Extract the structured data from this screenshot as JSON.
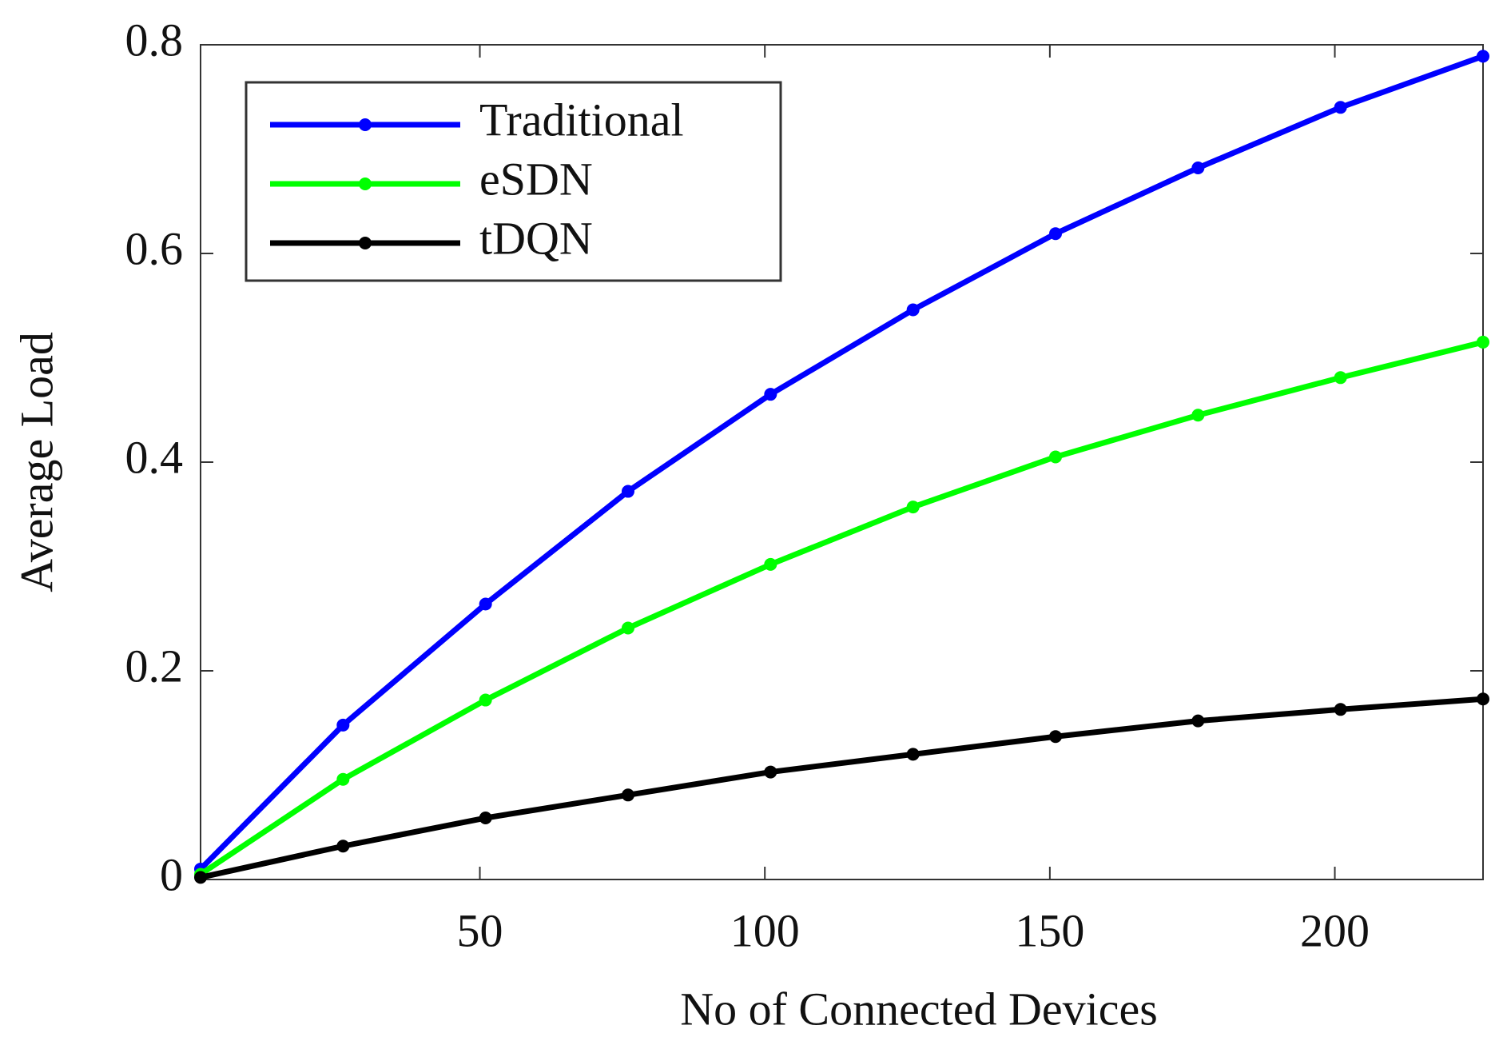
{
  "chart_data": {
    "type": "line",
    "x_label": "No of Connected Devices",
    "y_label": "Average Load",
    "x": [
      1,
      26,
      51,
      76,
      101,
      126,
      151,
      176,
      201,
      226
    ],
    "series": [
      {
        "name": "Traditional",
        "color": "#0000ff",
        "values": [
          0.01,
          0.148,
          0.264,
          0.372,
          0.465,
          0.546,
          0.619,
          0.682,
          0.74,
          0.789
        ]
      },
      {
        "name": "eSDN",
        "color": "#00ff00",
        "values": [
          0.005,
          0.096,
          0.172,
          0.241,
          0.302,
          0.357,
          0.405,
          0.445,
          0.481,
          0.515
        ]
      },
      {
        "name": "tDQN",
        "color": "#000000",
        "values": [
          0.002,
          0.032,
          0.059,
          0.081,
          0.103,
          0.12,
          0.137,
          0.152,
          0.163,
          0.173
        ]
      }
    ],
    "xlim": [
      1,
      226
    ],
    "xticks": [
      50,
      100,
      150,
      200
    ],
    "ylim": [
      0,
      0.8
    ],
    "yticks": [
      0,
      0.2,
      0.4,
      0.6,
      0.8
    ],
    "legend": "upper-left"
  }
}
